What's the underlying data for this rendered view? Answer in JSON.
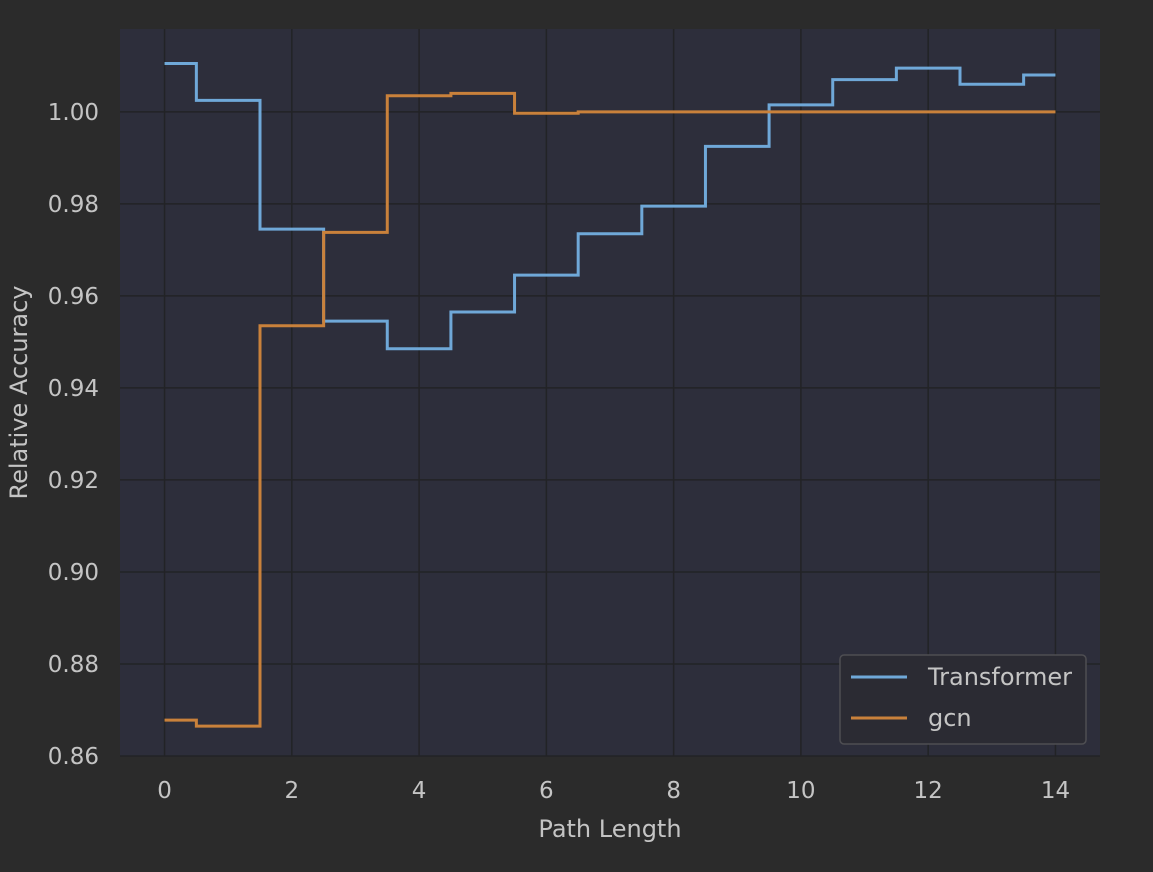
{
  "colors": {
    "page_background": "#2b2b2b",
    "plot_background": "#2d2e3b",
    "grid": "#222326",
    "legend_background": "#2b2b33",
    "legend_border": "#4e4e52",
    "text": "#c4c4c4"
  },
  "chart_data": {
    "type": "line",
    "step": "mid",
    "title": "",
    "xlabel": "Path Length",
    "ylabel": "Relative Accuracy",
    "xlim": [
      -0.7,
      14.7
    ],
    "ylim": [
      0.86,
      1.018
    ],
    "xticks": [
      0,
      2,
      4,
      6,
      8,
      10,
      12,
      14
    ],
    "yticks": [
      0.86,
      0.88,
      0.9,
      0.92,
      0.94,
      0.96,
      0.98,
      1.0
    ],
    "ytick_labels": [
      "0.86",
      "0.88",
      "0.90",
      "0.92",
      "0.94",
      "0.96",
      "0.98",
      "1.00"
    ],
    "grid": true,
    "legend_position": "lower-right",
    "x": [
      0,
      1,
      2,
      3,
      4,
      5,
      6,
      7,
      8,
      9,
      10,
      11,
      12,
      13,
      14
    ],
    "series": [
      {
        "name": "Transformer",
        "color": "#6fa8d8",
        "values": [
          1.0105,
          1.0025,
          0.9745,
          0.9545,
          0.9485,
          0.9565,
          0.9645,
          0.9735,
          0.9795,
          0.9925,
          1.0015,
          1.007,
          1.0095,
          1.006,
          1.008
        ]
      },
      {
        "name": "gcn",
        "color": "#c9813b",
        "values": [
          0.8678,
          0.8665,
          0.9535,
          0.9738,
          1.0035,
          1.004,
          0.9997,
          1.0,
          1.0,
          1.0,
          1.0,
          1.0,
          1.0,
          1.0,
          1.0
        ]
      }
    ]
  }
}
